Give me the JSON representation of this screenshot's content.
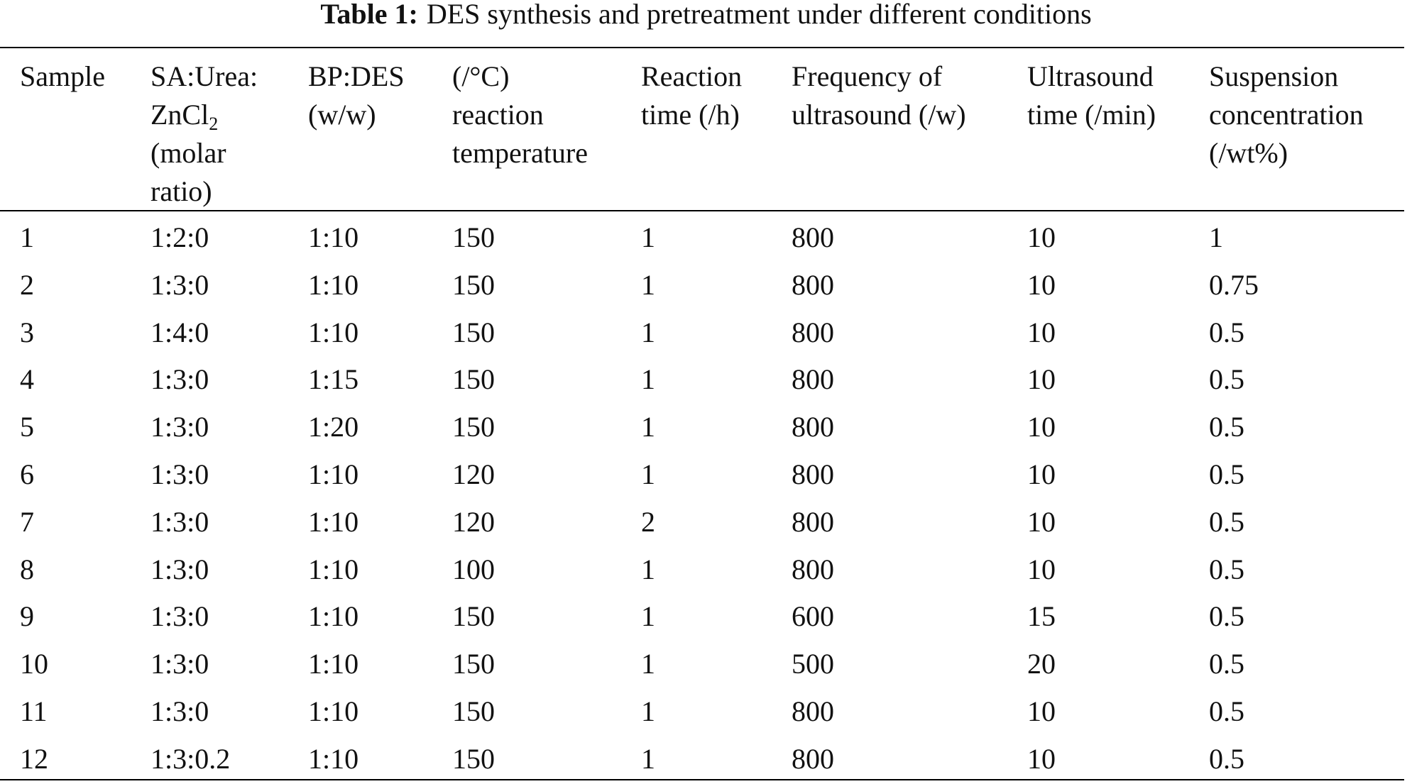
{
  "caption": {
    "label": "Table 1:",
    "text": "DES synthesis and pretreatment under different conditions"
  },
  "table": {
    "header": [
      [
        "Sample"
      ],
      [
        "SA:Urea:",
        {
          "text": "ZnCl",
          "sub": "2"
        },
        "(molar",
        "ratio)"
      ],
      [
        "BP:DES",
        "(w/w)"
      ],
      [
        "(/°C)",
        "reaction",
        "temperature"
      ],
      [
        "Reaction",
        "time (/h)"
      ],
      [
        "Frequency of",
        "ultrasound (/w)"
      ],
      [
        "Ultrasound",
        "time (/min)"
      ],
      [
        "Suspension",
        "concentration",
        "(/wt%)"
      ]
    ],
    "rows": [
      [
        "1",
        "1:2:0",
        "1:10",
        "150",
        "1",
        "800",
        "10",
        "1"
      ],
      [
        "2",
        "1:3:0",
        "1:10",
        "150",
        "1",
        "800",
        "10",
        "0.75"
      ],
      [
        "3",
        "1:4:0",
        "1:10",
        "150",
        "1",
        "800",
        "10",
        "0.5"
      ],
      [
        "4",
        "1:3:0",
        "1:15",
        "150",
        "1",
        "800",
        "10",
        "0.5"
      ],
      [
        "5",
        "1:3:0",
        "1:20",
        "150",
        "1",
        "800",
        "10",
        "0.5"
      ],
      [
        "6",
        "1:3:0",
        "1:10",
        "120",
        "1",
        "800",
        "10",
        "0.5"
      ],
      [
        "7",
        "1:3:0",
        "1:10",
        "120",
        "2",
        "800",
        "10",
        "0.5"
      ],
      [
        "8",
        "1:3:0",
        "1:10",
        "100",
        "1",
        "800",
        "10",
        "0.5"
      ],
      [
        "9",
        "1:3:0",
        "1:10",
        "150",
        "1",
        "600",
        "15",
        "0.5"
      ],
      [
        "10",
        "1:3:0",
        "1:10",
        "150",
        "1",
        "500",
        "20",
        "0.5"
      ],
      [
        "11",
        "1:3:0",
        "1:10",
        "150",
        "1",
        "800",
        "10",
        "0.5"
      ],
      [
        "12",
        "1:3:0.2",
        "1:10",
        "150",
        "1",
        "800",
        "10",
        "0.5"
      ]
    ]
  }
}
